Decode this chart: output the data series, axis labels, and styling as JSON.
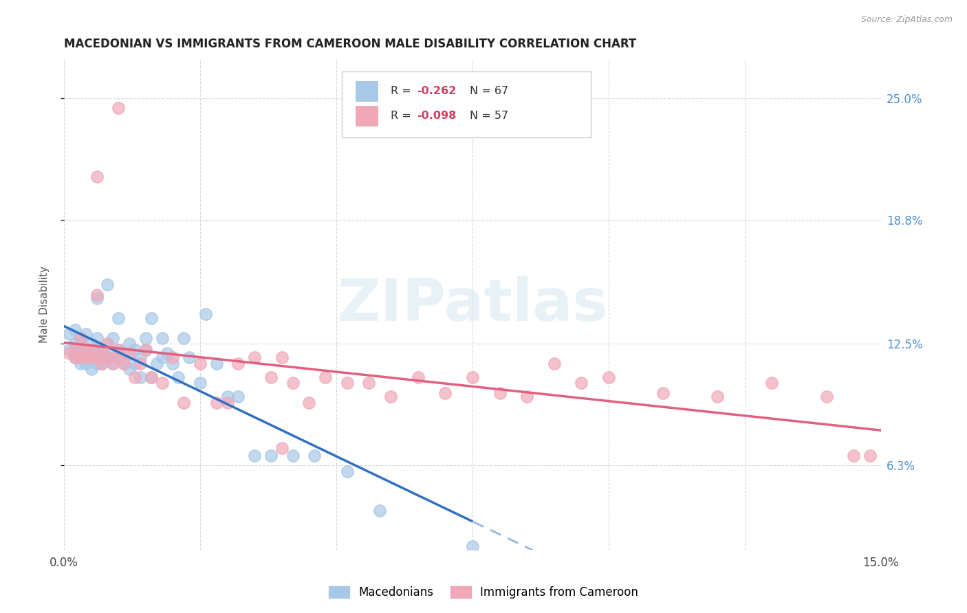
{
  "title": "MACEDONIAN VS IMMIGRANTS FROM CAMEROON MALE DISABILITY CORRELATION CHART",
  "source": "Source: ZipAtlas.com",
  "ylabel": "Male Disability",
  "xlim": [
    0.0,
    0.15
  ],
  "ylim": [
    0.02,
    0.27
  ],
  "yticks": [
    0.063,
    0.125,
    0.188,
    0.25
  ],
  "ytick_labels": [
    "6.3%",
    "12.5%",
    "18.8%",
    "25.0%"
  ],
  "xticks": [
    0.0,
    0.025,
    0.05,
    0.075,
    0.1,
    0.125,
    0.15
  ],
  "xtick_labels": [
    "0.0%",
    "",
    "",
    "",
    "",
    "",
    "15.0%"
  ],
  "macedonian_color": "#a8c8e8",
  "cameroon_color": "#f0a8b8",
  "trendline_mac_color": "#3070c0",
  "trendline_cam_color": "#e06080",
  "trendline_mac_dashed_color": "#90b8e0",
  "legend_R_mac": "-0.262",
  "legend_N_mac": "67",
  "legend_R_cam": "-0.098",
  "legend_N_cam": "57",
  "watermark_text": "ZIPatlas",
  "bg_color": "#ffffff",
  "grid_color": "#d8d8d8",
  "right_tick_color": "#5090d0",
  "mac_x": [
    0.001,
    0.001,
    0.002,
    0.002,
    0.002,
    0.003,
    0.003,
    0.003,
    0.003,
    0.003,
    0.004,
    0.004,
    0.004,
    0.004,
    0.005,
    0.005,
    0.005,
    0.005,
    0.006,
    0.006,
    0.006,
    0.006,
    0.006,
    0.007,
    0.007,
    0.007,
    0.008,
    0.008,
    0.008,
    0.009,
    0.009,
    0.009,
    0.01,
    0.01,
    0.01,
    0.011,
    0.011,
    0.012,
    0.012,
    0.013,
    0.013,
    0.014,
    0.014,
    0.015,
    0.015,
    0.016,
    0.016,
    0.017,
    0.018,
    0.018,
    0.019,
    0.02,
    0.021,
    0.022,
    0.023,
    0.025,
    0.026,
    0.028,
    0.03,
    0.032,
    0.035,
    0.038,
    0.042,
    0.046,
    0.052,
    0.058,
    0.075
  ],
  "mac_y": [
    0.122,
    0.13,
    0.118,
    0.125,
    0.132,
    0.115,
    0.122,
    0.128,
    0.118,
    0.125,
    0.115,
    0.122,
    0.13,
    0.118,
    0.112,
    0.118,
    0.125,
    0.12,
    0.115,
    0.122,
    0.128,
    0.12,
    0.148,
    0.115,
    0.122,
    0.118,
    0.118,
    0.125,
    0.155,
    0.115,
    0.12,
    0.128,
    0.118,
    0.122,
    0.138,
    0.115,
    0.12,
    0.112,
    0.125,
    0.115,
    0.122,
    0.108,
    0.118,
    0.122,
    0.128,
    0.108,
    0.138,
    0.115,
    0.118,
    0.128,
    0.12,
    0.115,
    0.108,
    0.128,
    0.118,
    0.105,
    0.14,
    0.115,
    0.098,
    0.098,
    0.068,
    0.068,
    0.068,
    0.068,
    0.06,
    0.04,
    0.022
  ],
  "cam_x": [
    0.001,
    0.002,
    0.002,
    0.003,
    0.003,
    0.004,
    0.004,
    0.005,
    0.005,
    0.006,
    0.006,
    0.007,
    0.007,
    0.008,
    0.008,
    0.009,
    0.01,
    0.01,
    0.011,
    0.012,
    0.013,
    0.014,
    0.015,
    0.016,
    0.018,
    0.02,
    0.022,
    0.025,
    0.028,
    0.03,
    0.032,
    0.035,
    0.038,
    0.04,
    0.042,
    0.045,
    0.048,
    0.052,
    0.056,
    0.06,
    0.065,
    0.07,
    0.075,
    0.08,
    0.085,
    0.09,
    0.095,
    0.1,
    0.11,
    0.12,
    0.13,
    0.14,
    0.148,
    0.006,
    0.01,
    0.145,
    0.04
  ],
  "cam_y": [
    0.12,
    0.118,
    0.122,
    0.128,
    0.118,
    0.122,
    0.118,
    0.118,
    0.122,
    0.118,
    0.15,
    0.115,
    0.12,
    0.118,
    0.125,
    0.115,
    0.118,
    0.122,
    0.115,
    0.12,
    0.108,
    0.115,
    0.122,
    0.108,
    0.105,
    0.118,
    0.095,
    0.115,
    0.095,
    0.095,
    0.115,
    0.118,
    0.108,
    0.118,
    0.105,
    0.095,
    0.108,
    0.105,
    0.105,
    0.098,
    0.108,
    0.1,
    0.108,
    0.1,
    0.098,
    0.115,
    0.105,
    0.108,
    0.1,
    0.098,
    0.105,
    0.098,
    0.068,
    0.21,
    0.245,
    0.068,
    0.072
  ]
}
